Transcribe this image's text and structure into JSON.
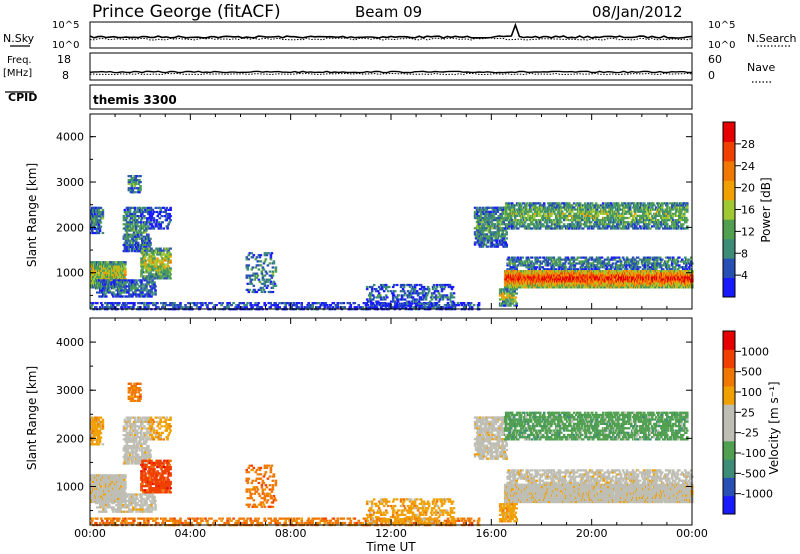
{
  "header": {
    "station": "Prince George (fitACF)",
    "beam": "Beam 09",
    "date": "08/Jan/2012"
  },
  "strips": {
    "nsky_label": "N.Sky",
    "nsky_ticks": [
      "10^5",
      "10^0"
    ],
    "nsearch_label": "N.Search",
    "nsearch_ticks": [
      "10^5",
      "10^0"
    ],
    "freq_label_1": "Freq.",
    "freq_label_2": "[MHz]",
    "freq_ticks": [
      "18",
      "8"
    ],
    "nave_label": "Nave",
    "nave_ticks": [
      "60",
      "0"
    ],
    "cpid_label": "CPID",
    "cpid_value": "themis 3300"
  },
  "colors": {
    "power_scale": [
      "#1a1aff",
      "#2850b4",
      "#3c8c78",
      "#50a050",
      "#a0c832",
      "#f0a000",
      "#f07800",
      "#f04000",
      "#e60000"
    ],
    "velocity_scale": [
      "#e60000",
      "#f04000",
      "#f07800",
      "#f0a000",
      "#bebeb4",
      "#bebeb4",
      "#50a050",
      "#3c8c78",
      "#2850b4",
      "#1a1aff"
    ]
  },
  "chart_data": [
    {
      "type": "heatmap",
      "title": "Power",
      "xlabel": "",
      "ylabel": "Slant Range [km]",
      "x_ticks": [
        "00:00",
        "04:00",
        "08:00",
        "12:00",
        "16:00",
        "20:00",
        "00:00"
      ],
      "y_ticks": [
        "1000",
        "2000",
        "3000",
        "4000"
      ],
      "ylim": [
        200,
        4500
      ],
      "colorbar_label": "Power [dB]",
      "colorbar_ticks": [
        "4",
        "8",
        "12",
        "16",
        "20",
        "24",
        "28"
      ],
      "zlim": [
        0,
        30
      ]
    },
    {
      "type": "heatmap",
      "title": "Velocity",
      "xlabel": "Time UT",
      "ylabel": "Slant Range [km]",
      "x_ticks": [
        "00:00",
        "04:00",
        "08:00",
        "12:00",
        "16:00",
        "20:00",
        "00:00"
      ],
      "y_ticks": [
        "1000",
        "2000",
        "3000",
        "4000"
      ],
      "ylim": [
        200,
        4500
      ],
      "colorbar_label": "Velocity [m s⁻¹]",
      "colorbar_ticks": [
        "1000",
        "500",
        "100",
        "25",
        "-25",
        "-100",
        "-500",
        "-1000"
      ],
      "zlim": [
        -1000,
        1000
      ]
    }
  ]
}
